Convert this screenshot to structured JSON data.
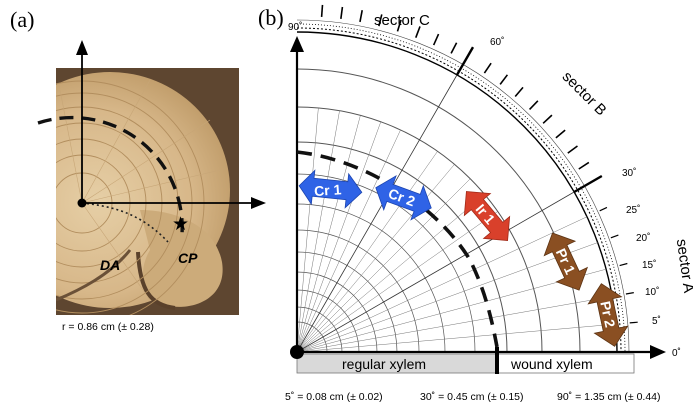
{
  "panel_a": {
    "label": "(a)",
    "region_da": "DA",
    "region_cp": "CP",
    "star": "★",
    "caption": "r = 0.86 cm (± 0.28)"
  },
  "panel_b": {
    "label": "(b)",
    "sectors": {
      "a": "sector A",
      "b": "sector B",
      "c": "sector C"
    },
    "angles": {
      "deg0": "0˚",
      "deg5": "5˚",
      "deg10": "10˚",
      "deg15": "15˚",
      "deg20": "20˚",
      "deg25": "25˚",
      "deg30": "30˚",
      "deg60": "60˚",
      "deg90": "90˚"
    },
    "arrows": {
      "cr1": "Cr 1",
      "cr2": "Cr 2",
      "ir1": "Ir 1",
      "pr1": "Pr 1",
      "pr2": "Pr 2"
    },
    "bar": {
      "regular": "regular xylem",
      "wound": "wound xylem"
    },
    "captions": {
      "c5": "5˚ = 0.08 cm (± 0.02)",
      "c30": "30˚ = 0.45 cm (± 0.15)",
      "c90": "90˚ = 1.35 cm (± 0.44)"
    }
  },
  "colors": {
    "cr_arrow": "#2f63e6",
    "ir_arrow": "#d9402b",
    "pr_arrow": "#8a4f22",
    "wood_light": "#d8b98a",
    "wood_dark": "#6b5138",
    "bar_gray": "#d9d9d9"
  }
}
